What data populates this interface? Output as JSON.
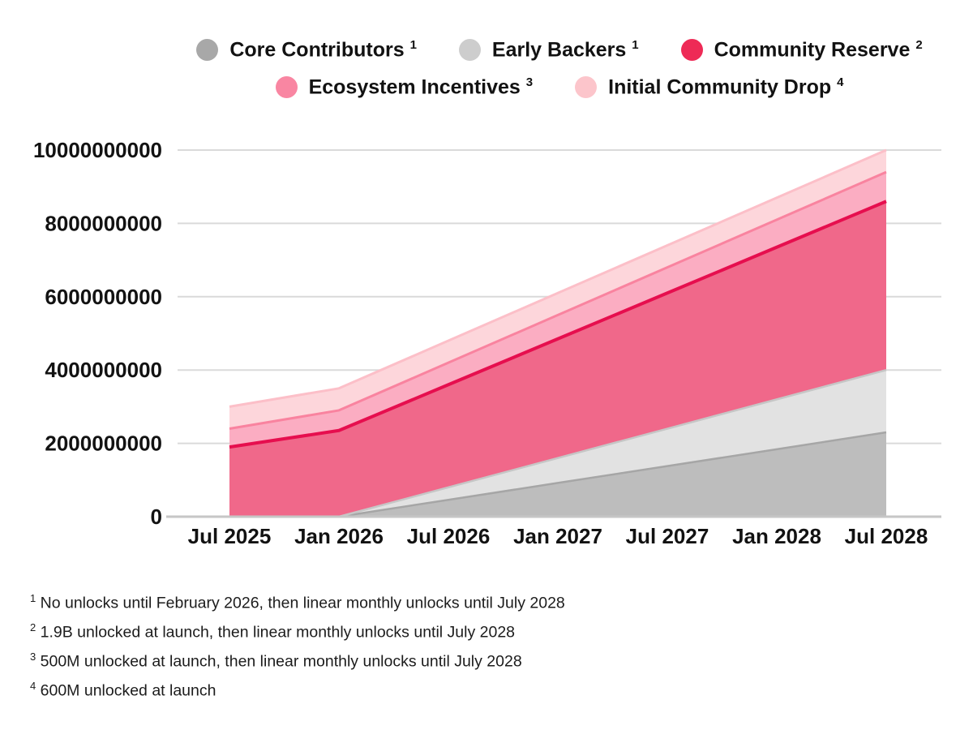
{
  "colors": {
    "background": "#ffffff",
    "grid_line": "#dadada",
    "axis_line": "#c6c6c6",
    "label_text": "#121212",
    "footnote_text": "#1c1c1c"
  },
  "legend": {
    "rows": [
      [
        {
          "label": "Core Contributors",
          "sup": "1",
          "color": "#a8a8a8"
        },
        {
          "label": "Early Backers",
          "sup": "1",
          "color": "#cdcdcd"
        },
        {
          "label": "Community Reserve",
          "sup": "2",
          "color": "#ee2a56"
        }
      ],
      [
        {
          "label": "Ecosystem Incentives",
          "sup": "3",
          "color": "#f986a2"
        },
        {
          "label": "Initial Community Drop",
          "sup": "4",
          "color": "#fcc5cb"
        }
      ]
    ]
  },
  "chart_data": {
    "type": "area",
    "stacked": true,
    "title": "",
    "xlabel": "",
    "ylabel": "",
    "x_labels": [
      "Jul 2025",
      "Jan 2026",
      "Jul 2026",
      "Jan 2027",
      "Jul 2027",
      "Jan 2028",
      "Jul 2028"
    ],
    "series": [
      {
        "name": "Core Contributors",
        "values": [
          0,
          0,
          460000000,
          920000000,
          1380000000,
          1840000000,
          2300000000
        ],
        "fill": "#bdbdbd",
        "stroke": "#a6a6a6",
        "stroke_width": 2.5
      },
      {
        "name": "Early Backers",
        "values": [
          0,
          0,
          340000000,
          680000000,
          1020000000,
          1360000000,
          1700000000
        ],
        "fill": "#e2e2e2",
        "stroke": "#c6c6c6",
        "stroke_width": 2.5
      },
      {
        "name": "Community Reserve",
        "values": [
          1900000000,
          2350000000,
          2800000000,
          3250000000,
          3700000000,
          4150000000,
          4600000000
        ],
        "fill": "#f0688a",
        "stroke": "#e60e4e",
        "stroke_width": 4
      },
      {
        "name": "Ecosystem Incentives",
        "values": [
          500000000,
          550000000,
          600000000,
          650000000,
          700000000,
          750000000,
          800000000
        ],
        "fill": "#fbadc2",
        "stroke": "#f9839f",
        "stroke_width": 3
      },
      {
        "name": "Initial Community Drop",
        "values": [
          600000000,
          600000000,
          600000000,
          600000000,
          600000000,
          600000000,
          600000000
        ],
        "fill": "#fdd6db",
        "stroke": "#fcbfc8",
        "stroke_width": 3
      }
    ],
    "ylim": [
      0,
      10000000000
    ],
    "y_ticks": [
      0,
      2000000000,
      4000000000,
      6000000000,
      8000000000,
      10000000000
    ],
    "y_tick_labels": [
      "0",
      "2000000000",
      "4000000000",
      "6000000000",
      "8000000000",
      "10000000000"
    ],
    "grid": "horizontal",
    "legend_position": "top"
  },
  "footnotes": [
    {
      "sup": "1",
      "text": "No unlocks until February 2026, then linear monthly unlocks until July 2028"
    },
    {
      "sup": "2",
      "text": "1.9B unlocked at launch, then linear monthly unlocks until July 2028"
    },
    {
      "sup": "3",
      "text": "500M unlocked at launch, then linear monthly unlocks until July 2028"
    },
    {
      "sup": "4",
      "text": "600M unlocked at launch"
    }
  ]
}
